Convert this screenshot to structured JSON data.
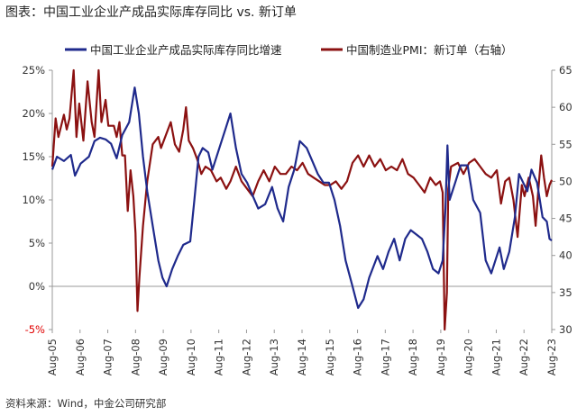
{
  "title": "图表：中国工业企业产成品实际库存同比 vs. 新订单",
  "source": "资料来源：Wind，中金公司研究部",
  "colors": {
    "series1": "#1f2a8c",
    "series2": "#8b1111",
    "negative_tick": "#e00000",
    "axis": "#999999"
  },
  "chart_data": {
    "type": "line",
    "title": "图表：中国工业企业产成品实际库存同比 vs. 新订单",
    "x_categories": [
      "Aug-05",
      "Aug-06",
      "Aug-07",
      "Aug-08",
      "Aug-09",
      "Aug-10",
      "Aug-11",
      "Aug-12",
      "Aug-13",
      "Aug-14",
      "Aug-15",
      "Aug-16",
      "Aug-17",
      "Aug-18",
      "Aug-19",
      "Aug-20",
      "Aug-21",
      "Aug-22",
      "Aug-23"
    ],
    "x_range": [
      2005.58,
      2023.58
    ],
    "y_left": {
      "range": [
        -5,
        25
      ],
      "ticks": [
        "-5%",
        "0%",
        "5%",
        "10%",
        "15%",
        "20%",
        "25%"
      ],
      "tick_values": [
        -5,
        0,
        5,
        10,
        15,
        20,
        25
      ]
    },
    "y_right": {
      "range": [
        30,
        65
      ],
      "ticks": [
        "30",
        "35",
        "40",
        "45",
        "50",
        "55",
        "60",
        "65"
      ],
      "tick_values": [
        30,
        35,
        40,
        45,
        50,
        55,
        60,
        65
      ]
    },
    "legend_position": "top",
    "series": [
      {
        "name": "中国工业企业产成品实际库存同比增速",
        "axis": "left",
        "points": [
          [
            2005.58,
            13.5
          ],
          [
            2005.75,
            15.0
          ],
          [
            2006.0,
            14.5
          ],
          [
            2006.25,
            15.2
          ],
          [
            2006.4,
            12.8
          ],
          [
            2006.6,
            14.2
          ],
          [
            2006.9,
            15.0
          ],
          [
            2007.1,
            16.8
          ],
          [
            2007.3,
            17.2
          ],
          [
            2007.5,
            17.0
          ],
          [
            2007.7,
            16.5
          ],
          [
            2007.9,
            14.8
          ],
          [
            2008.1,
            17.5
          ],
          [
            2008.35,
            19.0
          ],
          [
            2008.55,
            23.0
          ],
          [
            2008.7,
            20.0
          ],
          [
            2008.85,
            15.0
          ],
          [
            2009.0,
            11.0
          ],
          [
            2009.2,
            7.0
          ],
          [
            2009.4,
            3.0
          ],
          [
            2009.55,
            1.0
          ],
          [
            2009.7,
            0.0
          ],
          [
            2009.9,
            2.0
          ],
          [
            2010.1,
            3.5
          ],
          [
            2010.3,
            4.8
          ],
          [
            2010.55,
            5.2
          ],
          [
            2010.7,
            10.0
          ],
          [
            2010.85,
            15.0
          ],
          [
            2011.0,
            16.0
          ],
          [
            2011.2,
            15.5
          ],
          [
            2011.35,
            13.5
          ],
          [
            2011.6,
            16.0
          ],
          [
            2011.85,
            18.5
          ],
          [
            2012.0,
            20.0
          ],
          [
            2012.2,
            16.0
          ],
          [
            2012.4,
            13.0
          ],
          [
            2012.6,
            12.0
          ],
          [
            2012.8,
            10.5
          ],
          [
            2013.0,
            9.0
          ],
          [
            2013.25,
            9.5
          ],
          [
            2013.5,
            11.5
          ],
          [
            2013.7,
            9.0
          ],
          [
            2013.9,
            7.5
          ],
          [
            2014.1,
            11.5
          ],
          [
            2014.3,
            13.5
          ],
          [
            2014.5,
            16.8
          ],
          [
            2014.75,
            16.0
          ],
          [
            2014.95,
            14.5
          ],
          [
            2015.15,
            13.0
          ],
          [
            2015.35,
            12.0
          ],
          [
            2015.55,
            12.0
          ],
          [
            2015.75,
            10.0
          ],
          [
            2015.95,
            7.0
          ],
          [
            2016.15,
            3.0
          ],
          [
            2016.4,
            0.0
          ],
          [
            2016.6,
            -2.5
          ],
          [
            2016.8,
            -1.5
          ],
          [
            2017.0,
            1.0
          ],
          [
            2017.3,
            3.5
          ],
          [
            2017.5,
            2.0
          ],
          [
            2017.7,
            4.0
          ],
          [
            2017.9,
            5.5
          ],
          [
            2018.1,
            3.0
          ],
          [
            2018.3,
            5.5
          ],
          [
            2018.5,
            6.5
          ],
          [
            2018.7,
            6.0
          ],
          [
            2018.9,
            5.5
          ],
          [
            2019.1,
            4.0
          ],
          [
            2019.3,
            2.0
          ],
          [
            2019.5,
            1.5
          ],
          [
            2019.65,
            3.0
          ],
          [
            2019.75,
            9.0
          ],
          [
            2019.82,
            16.3
          ],
          [
            2019.9,
            10.0
          ],
          [
            2020.1,
            12.0
          ],
          [
            2020.3,
            14.0
          ],
          [
            2020.55,
            14.0
          ],
          [
            2020.75,
            10.0
          ],
          [
            2021.0,
            8.5
          ],
          [
            2021.2,
            3.0
          ],
          [
            2021.4,
            1.5
          ],
          [
            2021.55,
            3.0
          ],
          [
            2021.7,
            4.5
          ],
          [
            2021.85,
            2.0
          ],
          [
            2022.05,
            4.0
          ],
          [
            2022.25,
            8.0
          ],
          [
            2022.4,
            13.0
          ],
          [
            2022.55,
            12.0
          ],
          [
            2022.7,
            11.0
          ],
          [
            2022.85,
            13.5
          ],
          [
            2023.05,
            12.0
          ],
          [
            2023.25,
            8.0
          ],
          [
            2023.4,
            7.5
          ],
          [
            2023.5,
            5.5
          ],
          [
            2023.58,
            5.3
          ]
        ]
      },
      {
        "name": "中国制造业PMI：新订单（右轴）",
        "axis": "right",
        "points": [
          [
            2005.58,
            52.0
          ],
          [
            2005.7,
            58.5
          ],
          [
            2005.8,
            56.0
          ],
          [
            2006.0,
            59.0
          ],
          [
            2006.1,
            57.0
          ],
          [
            2006.2,
            58.5
          ],
          [
            2006.35,
            65.0
          ],
          [
            2006.45,
            56.0
          ],
          [
            2006.55,
            60.5
          ],
          [
            2006.7,
            55.5
          ],
          [
            2006.85,
            63.5
          ],
          [
            2007.0,
            58.0
          ],
          [
            2007.1,
            56.0
          ],
          [
            2007.25,
            65.0
          ],
          [
            2007.35,
            58.0
          ],
          [
            2007.5,
            61.0
          ],
          [
            2007.6,
            57.5
          ],
          [
            2007.8,
            57.5
          ],
          [
            2007.9,
            56.0
          ],
          [
            2008.0,
            58.0
          ],
          [
            2008.1,
            53.5
          ],
          [
            2008.2,
            53.5
          ],
          [
            2008.3,
            46.0
          ],
          [
            2008.4,
            51.5
          ],
          [
            2008.5,
            48.0
          ],
          [
            2008.58,
            43.0
          ],
          [
            2008.65,
            32.5
          ],
          [
            2008.72,
            37.0
          ],
          [
            2008.85,
            44.0
          ],
          [
            2009.0,
            50.0
          ],
          [
            2009.2,
            55.0
          ],
          [
            2009.4,
            56.0
          ],
          [
            2009.5,
            54.5
          ],
          [
            2009.7,
            56.5
          ],
          [
            2009.85,
            58.0
          ],
          [
            2010.0,
            55.0
          ],
          [
            2010.15,
            54.0
          ],
          [
            2010.3,
            57.0
          ],
          [
            2010.4,
            60.0
          ],
          [
            2010.5,
            55.5
          ],
          [
            2010.65,
            54.5
          ],
          [
            2010.8,
            53.0
          ],
          [
            2010.95,
            51.0
          ],
          [
            2011.1,
            52.0
          ],
          [
            2011.3,
            51.5
          ],
          [
            2011.5,
            50.0
          ],
          [
            2011.65,
            50.5
          ],
          [
            2011.85,
            49.0
          ],
          [
            2012.0,
            50.0
          ],
          [
            2012.2,
            52.0
          ],
          [
            2012.4,
            50.0
          ],
          [
            2012.6,
            49.0
          ],
          [
            2012.8,
            48.0
          ],
          [
            2013.0,
            50.0
          ],
          [
            2013.2,
            51.5
          ],
          [
            2013.4,
            50.0
          ],
          [
            2013.6,
            52.0
          ],
          [
            2013.8,
            51.0
          ],
          [
            2014.0,
            51.0
          ],
          [
            2014.2,
            52.0
          ],
          [
            2014.4,
            51.5
          ],
          [
            2014.6,
            52.5
          ],
          [
            2014.8,
            51.0
          ],
          [
            2015.0,
            50.5
          ],
          [
            2015.2,
            50.0
          ],
          [
            2015.4,
            49.5
          ],
          [
            2015.6,
            49.5
          ],
          [
            2015.8,
            50.0
          ],
          [
            2016.0,
            49.0
          ],
          [
            2016.2,
            50.0
          ],
          [
            2016.4,
            52.5
          ],
          [
            2016.6,
            53.5
          ],
          [
            2016.8,
            52.0
          ],
          [
            2017.0,
            53.5
          ],
          [
            2017.2,
            52.0
          ],
          [
            2017.4,
            53.0
          ],
          [
            2017.6,
            51.5
          ],
          [
            2017.8,
            52.0
          ],
          [
            2018.0,
            51.5
          ],
          [
            2018.2,
            53.0
          ],
          [
            2018.4,
            51.0
          ],
          [
            2018.6,
            50.5
          ],
          [
            2018.8,
            49.5
          ],
          [
            2019.0,
            48.5
          ],
          [
            2019.2,
            50.5
          ],
          [
            2019.4,
            49.5
          ],
          [
            2019.55,
            50.0
          ],
          [
            2019.65,
            48.5
          ],
          [
            2019.72,
            30.0
          ],
          [
            2019.8,
            35.0
          ],
          [
            2019.85,
            49.0
          ],
          [
            2019.95,
            52.0
          ],
          [
            2020.2,
            52.5
          ],
          [
            2020.4,
            51.0
          ],
          [
            2020.6,
            52.5
          ],
          [
            2020.8,
            53.0
          ],
          [
            2021.0,
            52.0
          ],
          [
            2021.2,
            51.0
          ],
          [
            2021.4,
            50.5
          ],
          [
            2021.6,
            51.5
          ],
          [
            2021.75,
            47.0
          ],
          [
            2021.9,
            50.0
          ],
          [
            2022.05,
            50.5
          ],
          [
            2022.2,
            47.5
          ],
          [
            2022.35,
            42.5
          ],
          [
            2022.5,
            49.5
          ],
          [
            2022.6,
            48.0
          ],
          [
            2022.75,
            50.5
          ],
          [
            2022.9,
            48.0
          ],
          [
            2023.0,
            44.0
          ],
          [
            2023.1,
            49.0
          ],
          [
            2023.2,
            53.5
          ],
          [
            2023.3,
            50.5
          ],
          [
            2023.4,
            48.0
          ],
          [
            2023.5,
            49.5
          ],
          [
            2023.58,
            50.2
          ]
        ]
      }
    ]
  }
}
